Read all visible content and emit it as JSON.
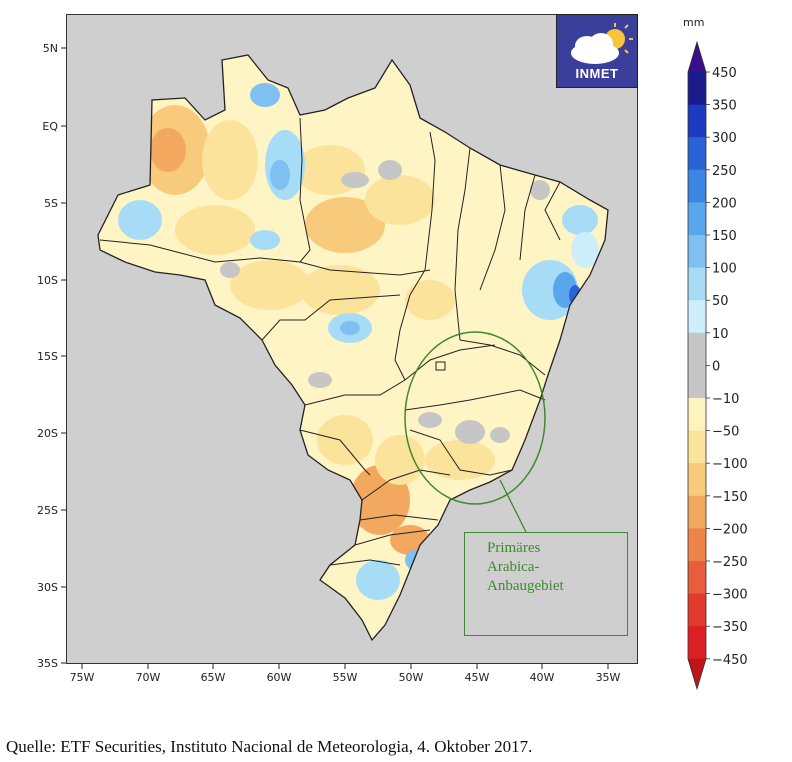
{
  "map": {
    "lat_ticks": [
      "5N",
      "EQ",
      "5S",
      "10S",
      "15S",
      "20S",
      "25S",
      "30S",
      "35S"
    ],
    "lon_ticks": [
      "75W",
      "70W",
      "65W",
      "60W",
      "55W",
      "50W",
      "45W",
      "40W",
      "35W"
    ],
    "region": "Brazil",
    "boundary_color": "#222222",
    "ocean_color": "#cfcfcf"
  },
  "logo": {
    "text": "INMET",
    "icon": "cloud-sun-icon",
    "bg_color": "#3b3f9c"
  },
  "legend": {
    "unit": "mm",
    "labels": [
      "450",
      "350",
      "300",
      "250",
      "200",
      "150",
      "100",
      "50",
      "10",
      "0",
      "−10",
      "−50",
      "−100",
      "−150",
      "−200",
      "−250",
      "−300",
      "−350",
      "−450"
    ],
    "colors": [
      "#3b0f8c",
      "#1a1a8a",
      "#1c3bbf",
      "#2a63d6",
      "#3c86e3",
      "#5aa6ec",
      "#7fc0f2",
      "#a7dcf7",
      "#cfeefc",
      "#c6c6c6",
      "#c6c6c6",
      "#fdf3bf",
      "#fce39b",
      "#f8ca7b",
      "#f3a860",
      "#ee844a",
      "#e85d3b",
      "#e33a2e",
      "#dc1f24",
      "#c0141c"
    ]
  },
  "annotation": {
    "text": "Primäres\nArabica-\nAnbaugebiet",
    "color": "#3f8a2e"
  },
  "caption": "Quelle: ETF Securities, Instituto Nacional de Meteorologia, 4. Oktober 2017."
}
